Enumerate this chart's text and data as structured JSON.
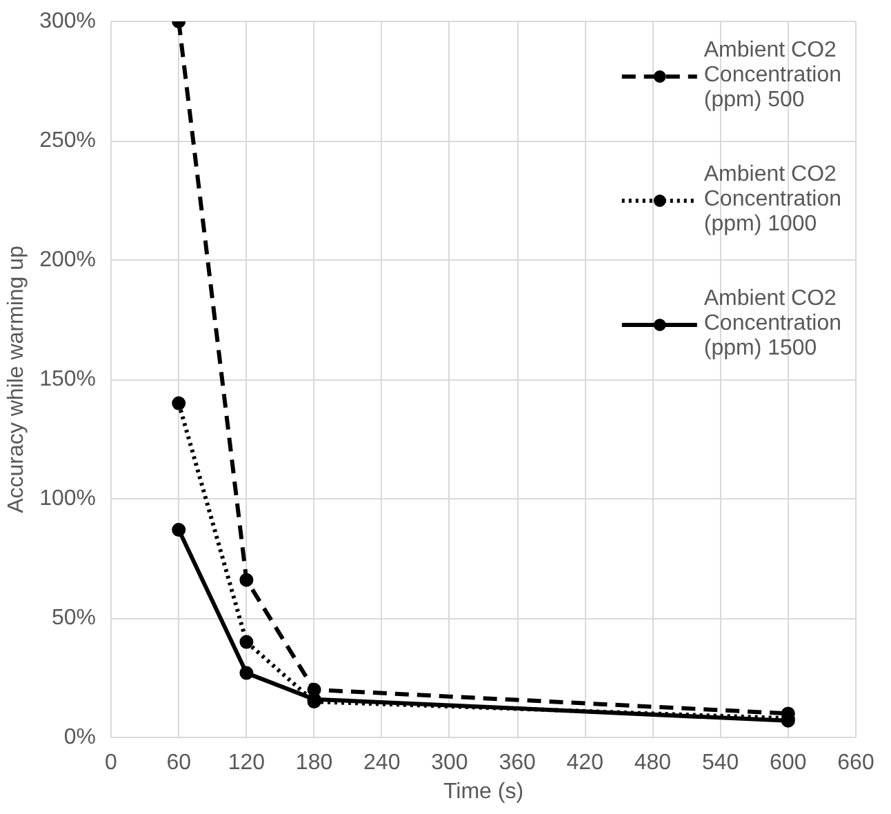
{
  "chart_data": {
    "type": "line",
    "xlabel": "Time (s)",
    "ylabel": "Accuracy while warming up",
    "x": [
      60,
      120,
      180,
      600
    ],
    "series": [
      {
        "name": "Ambient CO2 Concentration (ppm) 500",
        "color": "#000000",
        "line_style": "dashed",
        "values": [
          300,
          66,
          20,
          10
        ]
      },
      {
        "name": "Ambient CO2 Concentration (ppm) 1000",
        "color": "#000000",
        "line_style": "dotted",
        "values": [
          140,
          40,
          15,
          8
        ]
      },
      {
        "name": "Ambient CO2 Concentration (ppm) 1500",
        "color": "#000000",
        "line_style": "solid",
        "values": [
          87,
          27,
          16,
          7
        ]
      }
    ],
    "marker": "circle",
    "xlim": [
      0,
      660
    ],
    "xticks": [
      0,
      60,
      120,
      180,
      240,
      300,
      360,
      420,
      480,
      540,
      600,
      660
    ],
    "ylim": [
      0,
      300
    ],
    "yticks": [
      {
        "value": 0,
        "label": "0%"
      },
      {
        "value": 50,
        "label": "50%"
      },
      {
        "value": 100,
        "label": "100%"
      },
      {
        "value": 150,
        "label": "150%"
      },
      {
        "value": 200,
        "label": "200%"
      },
      {
        "value": 250,
        "label": "250%"
      },
      {
        "value": 300,
        "label": "300%"
      }
    ],
    "grid": true,
    "legend": "top right"
  }
}
